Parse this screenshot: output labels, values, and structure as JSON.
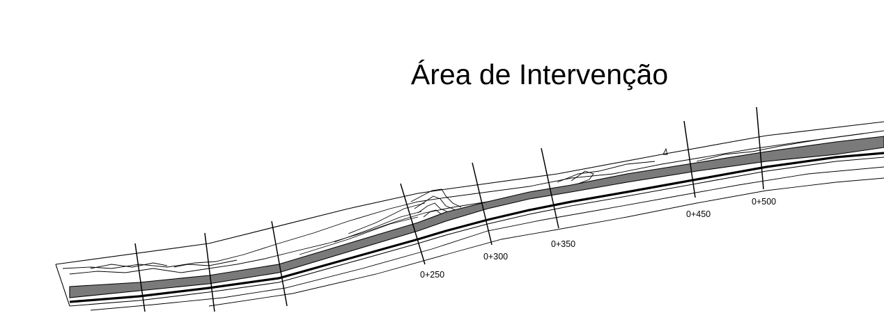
{
  "title": "Área de Intervenção",
  "stations": [
    {
      "label": "0+250"
    },
    {
      "label": "0+300"
    },
    {
      "label": "0+350"
    },
    {
      "label": "0+450"
    },
    {
      "label": "0+500"
    }
  ],
  "colors": {
    "line": "#000000",
    "band_fill": "#7a7a7a",
    "background": "#ffffff"
  }
}
